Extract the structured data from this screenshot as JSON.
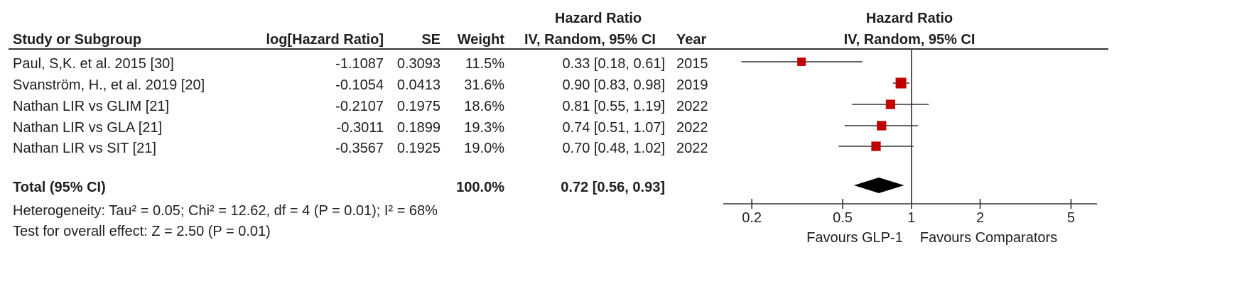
{
  "table": {
    "headers": {
      "study": "Study or Subgroup",
      "loghr": "log[Hazard Ratio]",
      "se": "SE",
      "weight": "Weight",
      "hr_top": "Hazard Ratio",
      "hr_bottom": "IV, Random, 95% CI",
      "year": "Year",
      "plot_top": "Hazard Ratio",
      "plot_bottom": "IV, Random, 95% CI"
    },
    "rows": [
      {
        "study": "Paul, S,K. et al. 2015 [30]",
        "loghr": "-1.1087",
        "se": "0.3093",
        "weight": "11.5%",
        "hr": "0.33 [0.18, 0.61]",
        "year": "2015"
      },
      {
        "study": "Svanström, H., et al. 2019 [20]",
        "loghr": "-0.1054",
        "se": "0.0413",
        "weight": "31.6%",
        "hr": "0.90 [0.83, 0.98]",
        "year": "2019"
      },
      {
        "study": "Nathan LIR vs GLIM [21]",
        "loghr": "-0.2107",
        "se": "0.1975",
        "weight": "18.6%",
        "hr": "0.81 [0.55, 1.19]",
        "year": "2022"
      },
      {
        "study": "Nathan LIR vs GLA [21]",
        "loghr": "-0.3011",
        "se": "0.1899",
        "weight": "19.3%",
        "hr": "0.74 [0.51, 1.07]",
        "year": "2022"
      },
      {
        "study": "Nathan LIR vs SIT [21]",
        "loghr": "-0.3567",
        "se": "0.1925",
        "weight": "19.0%",
        "hr": "0.70 [0.48, 1.02]",
        "year": "2022"
      }
    ],
    "total": {
      "label": "Total (95% CI)",
      "weight": "100.0%",
      "hr": "0.72 [0.56, 0.93]"
    },
    "heterogeneity": "Heterogeneity: Tau² = 0.05; Chi² = 12.62, df = 4 (P = 0.01); I² = 68%",
    "overall_effect": "Test for overall effect: Z = 2.50 (P = 0.01)"
  },
  "chart_data": {
    "type": "forest",
    "x_scale": "log",
    "xlim": [
      0.15,
      6.5
    ],
    "xticks": [
      0.2,
      0.5,
      1,
      2,
      5
    ],
    "xtick_labels": [
      "0.2",
      "0.5",
      "1",
      "2",
      "5"
    ],
    "reference_line": 1,
    "favours_left": "Favours GLP-1",
    "favours_right": "Favours Comparators",
    "marker_color": "#c00000",
    "summary_color": "#000000",
    "studies": [
      {
        "hr": 0.33,
        "lo": 0.18,
        "hi": 0.61,
        "weight": 11.5
      },
      {
        "hr": 0.9,
        "lo": 0.83,
        "hi": 0.98,
        "weight": 31.6
      },
      {
        "hr": 0.81,
        "lo": 0.55,
        "hi": 1.19,
        "weight": 18.6
      },
      {
        "hr": 0.74,
        "lo": 0.51,
        "hi": 1.07,
        "weight": 19.3
      },
      {
        "hr": 0.7,
        "lo": 0.48,
        "hi": 1.02,
        "weight": 19.0
      }
    ],
    "summary": {
      "hr": 0.72,
      "lo": 0.56,
      "hi": 0.93
    }
  }
}
